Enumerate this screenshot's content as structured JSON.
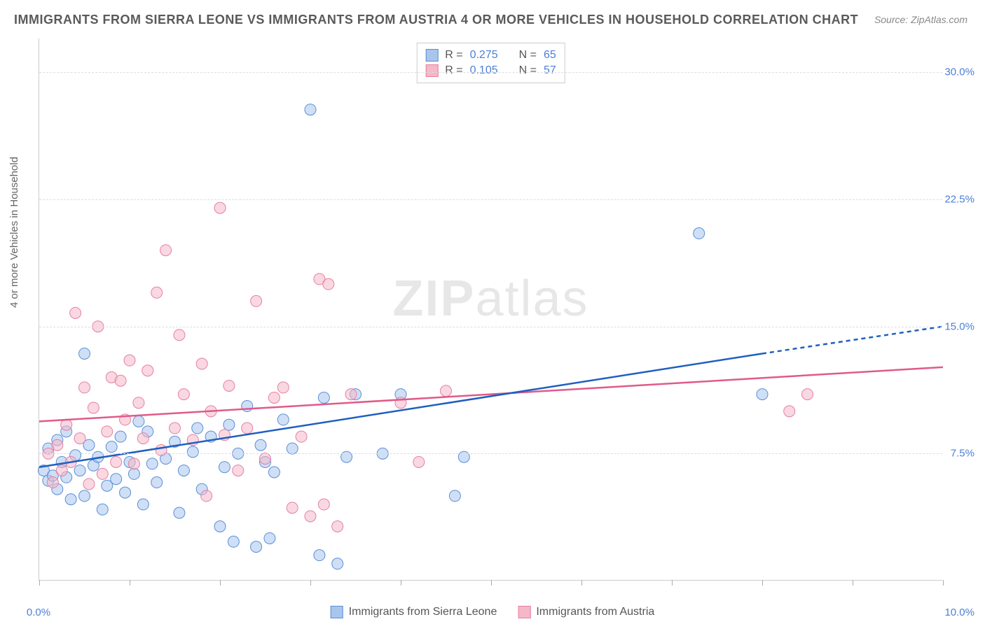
{
  "title": "IMMIGRANTS FROM SIERRA LEONE VS IMMIGRANTS FROM AUSTRIA 4 OR MORE VEHICLES IN HOUSEHOLD CORRELATION CHART",
  "source_prefix": "Source: ",
  "source_name": "ZipAtlas.com",
  "watermark_bold": "ZIP",
  "watermark_rest": "atlas",
  "ylabel": "4 or more Vehicles in Household",
  "chart": {
    "type": "scatter",
    "background_color": "#ffffff",
    "grid_color": "#dddddd",
    "axis_color": "#cccccc",
    "text_color": "#666666",
    "tick_label_color": "#4a7fd8",
    "xlim": [
      0,
      10
    ],
    "ylim": [
      0,
      32
    ],
    "x_tick_labels": {
      "left": "0.0%",
      "right": "10.0%"
    },
    "x_minor_ticks": [
      0,
      1,
      2,
      3,
      4,
      5,
      6,
      7,
      8,
      9,
      10
    ],
    "y_gridlines": [
      7.5,
      15.0,
      22.5,
      30.0
    ],
    "y_tick_labels": [
      "7.5%",
      "15.0%",
      "22.5%",
      "30.0%"
    ],
    "marker_radius": 8,
    "marker_opacity": 0.55,
    "line_width": 2.5,
    "series": [
      {
        "name": "Immigrants from Sierra Leone",
        "color_fill": "#a8c5ec",
        "color_stroke": "#5b8fd8",
        "line_color": "#1f5fbf",
        "r_label": "R =",
        "r_value": "0.275",
        "n_label": "N =",
        "n_value": "65",
        "trend": {
          "x1": 0.0,
          "y1": 6.7,
          "x2": 8.0,
          "y2": 13.4,
          "dash_x2": 10.0,
          "dash_y2": 15.0
        },
        "points": [
          [
            0.05,
            6.5
          ],
          [
            0.1,
            7.8
          ],
          [
            0.1,
            5.9
          ],
          [
            0.15,
            6.2
          ],
          [
            0.2,
            8.3
          ],
          [
            0.2,
            5.4
          ],
          [
            0.25,
            7.0
          ],
          [
            0.3,
            6.1
          ],
          [
            0.3,
            8.8
          ],
          [
            0.35,
            4.8
          ],
          [
            0.4,
            7.4
          ],
          [
            0.45,
            6.5
          ],
          [
            0.5,
            5.0
          ],
          [
            0.5,
            13.4
          ],
          [
            0.55,
            8.0
          ],
          [
            0.6,
            6.8
          ],
          [
            0.65,
            7.3
          ],
          [
            0.7,
            4.2
          ],
          [
            0.75,
            5.6
          ],
          [
            0.8,
            7.9
          ],
          [
            0.85,
            6.0
          ],
          [
            0.9,
            8.5
          ],
          [
            0.95,
            5.2
          ],
          [
            1.0,
            7.0
          ],
          [
            1.05,
            6.3
          ],
          [
            1.1,
            9.4
          ],
          [
            1.15,
            4.5
          ],
          [
            1.2,
            8.8
          ],
          [
            1.25,
            6.9
          ],
          [
            1.3,
            5.8
          ],
          [
            1.4,
            7.2
          ],
          [
            1.5,
            8.2
          ],
          [
            1.55,
            4.0
          ],
          [
            1.6,
            6.5
          ],
          [
            1.7,
            7.6
          ],
          [
            1.75,
            9.0
          ],
          [
            1.8,
            5.4
          ],
          [
            1.9,
            8.5
          ],
          [
            2.0,
            3.2
          ],
          [
            2.05,
            6.7
          ],
          [
            2.1,
            9.2
          ],
          [
            2.15,
            2.3
          ],
          [
            2.2,
            7.5
          ],
          [
            2.3,
            10.3
          ],
          [
            2.4,
            2.0
          ],
          [
            2.45,
            8.0
          ],
          [
            2.5,
            7.0
          ],
          [
            2.55,
            2.5
          ],
          [
            2.6,
            6.4
          ],
          [
            2.7,
            9.5
          ],
          [
            2.8,
            7.8
          ],
          [
            3.0,
            27.8
          ],
          [
            3.1,
            1.5
          ],
          [
            3.15,
            10.8
          ],
          [
            3.3,
            1.0
          ],
          [
            3.4,
            7.3
          ],
          [
            3.5,
            11.0
          ],
          [
            3.8,
            7.5
          ],
          [
            4.0,
            11.0
          ],
          [
            4.6,
            5.0
          ],
          [
            4.7,
            7.3
          ],
          [
            7.3,
            20.5
          ],
          [
            8.0,
            11.0
          ]
        ]
      },
      {
        "name": "Immigrants from Austria",
        "color_fill": "#f4b8c8",
        "color_stroke": "#e77fa3",
        "line_color": "#e05a8a",
        "r_label": "R =",
        "r_value": "0.105",
        "n_label": "N =",
        "n_value": "57",
        "trend": {
          "x1": 0.0,
          "y1": 9.4,
          "x2": 10.0,
          "y2": 12.6
        },
        "points": [
          [
            0.1,
            7.5
          ],
          [
            0.15,
            5.8
          ],
          [
            0.2,
            8.0
          ],
          [
            0.25,
            6.5
          ],
          [
            0.3,
            9.2
          ],
          [
            0.35,
            7.0
          ],
          [
            0.4,
            15.8
          ],
          [
            0.45,
            8.4
          ],
          [
            0.5,
            11.4
          ],
          [
            0.55,
            5.7
          ],
          [
            0.6,
            10.2
          ],
          [
            0.65,
            15.0
          ],
          [
            0.7,
            6.3
          ],
          [
            0.75,
            8.8
          ],
          [
            0.8,
            12.0
          ],
          [
            0.85,
            7.0
          ],
          [
            0.9,
            11.8
          ],
          [
            0.95,
            9.5
          ],
          [
            1.0,
            13.0
          ],
          [
            1.05,
            6.9
          ],
          [
            1.1,
            10.5
          ],
          [
            1.15,
            8.4
          ],
          [
            1.2,
            12.4
          ],
          [
            1.3,
            17.0
          ],
          [
            1.35,
            7.7
          ],
          [
            1.4,
            19.5
          ],
          [
            1.5,
            9.0
          ],
          [
            1.55,
            14.5
          ],
          [
            1.6,
            11.0
          ],
          [
            1.7,
            8.3
          ],
          [
            1.8,
            12.8
          ],
          [
            1.85,
            5.0
          ],
          [
            1.9,
            10.0
          ],
          [
            2.0,
            22.0
          ],
          [
            2.05,
            8.6
          ],
          [
            2.1,
            11.5
          ],
          [
            2.2,
            6.5
          ],
          [
            2.3,
            9.0
          ],
          [
            2.4,
            16.5
          ],
          [
            2.5,
            7.2
          ],
          [
            2.6,
            10.8
          ],
          [
            2.7,
            11.4
          ],
          [
            2.8,
            4.3
          ],
          [
            2.9,
            8.5
          ],
          [
            3.0,
            3.8
          ],
          [
            3.1,
            17.8
          ],
          [
            3.15,
            4.5
          ],
          [
            3.2,
            17.5
          ],
          [
            3.3,
            3.2
          ],
          [
            3.45,
            11.0
          ],
          [
            4.0,
            10.5
          ],
          [
            4.2,
            7.0
          ],
          [
            4.5,
            11.2
          ],
          [
            8.3,
            10.0
          ],
          [
            8.5,
            11.0
          ]
        ]
      }
    ]
  }
}
